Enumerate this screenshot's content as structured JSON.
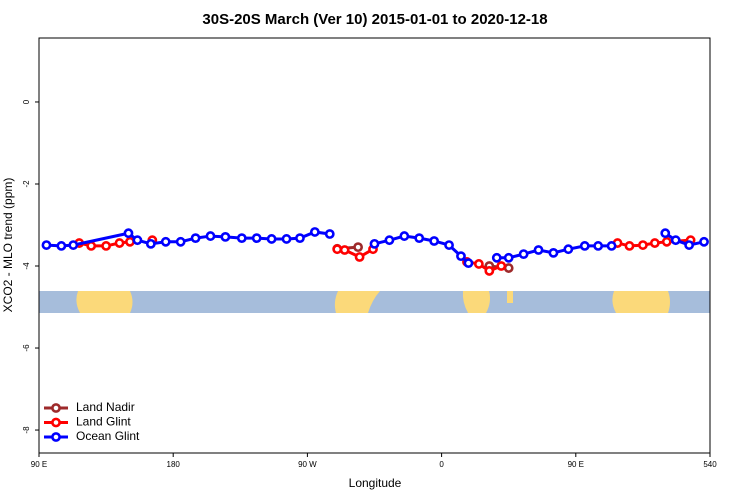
{
  "chart_data": {
    "type": "line",
    "title": "30S-20S March (Ver 10)   2015-01-01 to 2020-12-18",
    "x_label": "Longitude",
    "y_label": "XCO2 - MLO trend (ppm)",
    "xlim": [
      90,
      540
    ],
    "xticks": [
      {
        "value": 90,
        "label": "90 E"
      },
      180,
      {
        "value": 270,
        "label": "90 W"
      },
      {
        "value": 360,
        "label": "0"
      },
      {
        "value": 450,
        "label": "90 E"
      },
      540
    ],
    "ylim": [
      -8.56,
      1.56
    ],
    "yticks": [
      0,
      -2,
      -4,
      -6,
      -8
    ],
    "legend": "bottom-left",
    "series": [
      {
        "name": "Land Nadir",
        "color": "#9e2a2b",
        "x": [
          290,
          304,
          null,
          392,
          405
        ],
        "values": [
          -3.58,
          -3.54,
          null,
          -4.0,
          -4.05
        ]
      },
      {
        "name": "Land Glint",
        "color": "#ff0000",
        "x": [
          117,
          125,
          135,
          144,
          151,
          null,
          166,
          null,
          290,
          295,
          305,
          314,
          null,
          377,
          385,
          392,
          400,
          null,
          478,
          486,
          495,
          503,
          511,
          527
        ],
        "values": [
          -3.44,
          -3.51,
          -3.51,
          -3.44,
          -3.41,
          null,
          -3.37,
          null,
          -3.59,
          -3.61,
          -3.78,
          -3.59,
          null,
          -3.9,
          -3.95,
          -4.12,
          -4.0,
          null,
          -3.44,
          -3.51,
          -3.49,
          -3.44,
          -3.41,
          -3.37
        ]
      },
      {
        "name": "Ocean Glint",
        "color": "#0000ff",
        "x": [
          95,
          105,
          113,
          150,
          156,
          165,
          175,
          185,
          195,
          205,
          215,
          226,
          236,
          246,
          256,
          265,
          275,
          285,
          null,
          315,
          325,
          335,
          345,
          355,
          365,
          373,
          378,
          null,
          397,
          405,
          415,
          425,
          435,
          445,
          456,
          465,
          474,
          null,
          510,
          517,
          526,
          536
        ],
        "values": [
          -3.49,
          -3.51,
          -3.49,
          -3.2,
          -3.37,
          -3.46,
          -3.41,
          -3.41,
          -3.32,
          -3.27,
          -3.29,
          -3.32,
          -3.32,
          -3.34,
          -3.34,
          -3.32,
          -3.17,
          -3.22,
          null,
          -3.46,
          -3.37,
          -3.27,
          -3.32,
          -3.39,
          -3.49,
          -3.76,
          -3.93,
          null,
          -3.8,
          -3.8,
          -3.71,
          -3.61,
          -3.68,
          -3.59,
          -3.51,
          -3.51,
          -3.51,
          null,
          -3.2,
          -3.37,
          -3.49,
          -3.41
        ]
      }
    ]
  }
}
